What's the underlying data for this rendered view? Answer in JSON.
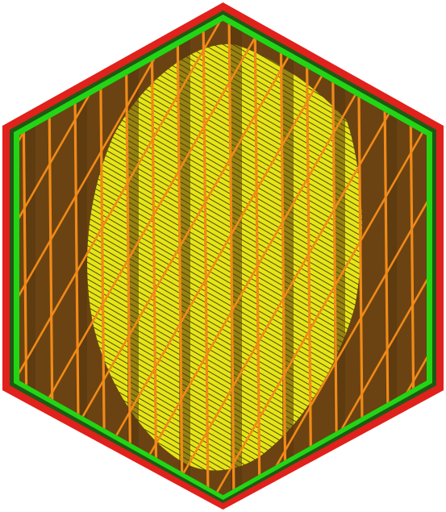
{
  "view": {
    "colors": {
      "background": "#ffffff",
      "outer_wall": "#e0211c",
      "inner_wall": "#22d615",
      "wall_gap": "#1e5a14",
      "infill_fill": "#6b4312",
      "infill_dark": "#55350e",
      "infill_lines": "#f08a18",
      "top_skin": "#e6e416",
      "top_skin_lines": "#4a4a08"
    },
    "layers": [
      "outer-wall",
      "inner-wall",
      "sparse-infill",
      "top-skin",
      "infill-lines"
    ]
  }
}
